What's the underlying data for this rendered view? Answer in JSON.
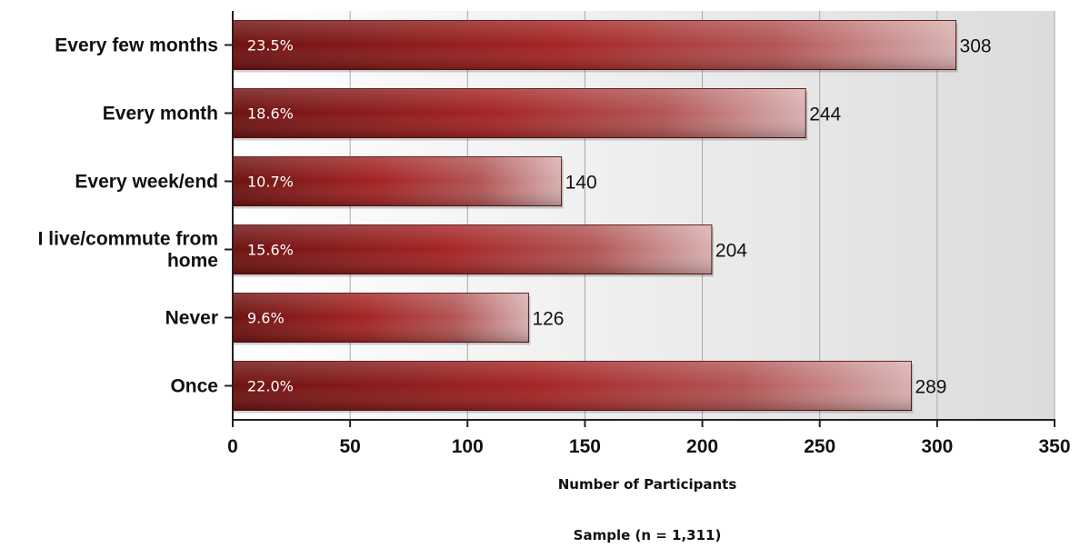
{
  "chart_data": {
    "type": "bar",
    "orientation": "horizontal",
    "categories": [
      "Every few months",
      "Every month",
      "Every week/end",
      "I live/commute from home",
      "Never",
      "Once"
    ],
    "category_lines": [
      [
        "Every few months"
      ],
      [
        "Every month"
      ],
      [
        "Every week/end"
      ],
      [
        "I live/commute from",
        "home"
      ],
      [
        "Never"
      ],
      [
        "Once"
      ]
    ],
    "values": [
      308,
      244,
      140,
      204,
      126,
      289
    ],
    "percent_labels": [
      "23.5%",
      "18.6%",
      "10.7%",
      "15.6%",
      "9.6%",
      "22.0%"
    ],
    "xlabel": "Number of Participants",
    "ylabel": "",
    "xlim": [
      0,
      350
    ],
    "xticks": [
      0,
      50,
      100,
      150,
      200,
      250,
      300,
      350
    ],
    "grid": true,
    "bar_color": "#8b1a1a"
  },
  "footer": {
    "sample_note": "Sample (n = 1,311)"
  }
}
